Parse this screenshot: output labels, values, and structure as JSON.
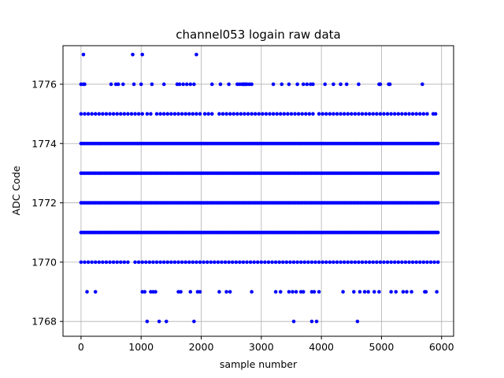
{
  "chart_data": {
    "type": "scatter",
    "title": "channel053 logain raw data",
    "xlabel": "sample number",
    "ylabel": "ADC Code",
    "xlim": [
      -300,
      6200
    ],
    "ylim": [
      1767.5,
      1777.3
    ],
    "xticks": [
      0,
      1000,
      2000,
      3000,
      4000,
      5000,
      6000
    ],
    "yticks": [
      1768,
      1770,
      1772,
      1774,
      1776
    ],
    "grid": true,
    "legend": "none",
    "marker_color": "#0000ff",
    "series": [
      {
        "bands": [
          {
            "y": 1771,
            "x_start": 0,
            "x_end": 5940
          },
          {
            "y": 1772,
            "x_start": 0,
            "x_end": 5940
          },
          {
            "y": 1773,
            "x_start": 0,
            "x_end": 5940
          },
          {
            "y": 1774,
            "x_start": 0,
            "x_end": 5940
          }
        ],
        "points": [
          {
            "y": 1775,
            "x": [
              0,
              60,
              120,
              180,
              240,
              300,
              360,
              420,
              480,
              540,
              600,
              660,
              720,
              780,
              840,
              900,
              960,
              1020,
              1100,
              1160,
              1260,
              1320,
              1380,
              1440,
              1500,
              1560,
              1620,
              1680,
              1740,
              1800,
              1860,
              1920,
              1980,
              2060,
              2120,
              2180,
              2300,
              2360,
              2420,
              2480,
              2540,
              2600,
              2660,
              2720,
              2780,
              2840,
              2900,
              2960,
              3020,
              3080,
              3140,
              3200,
              3260,
              3320,
              3380,
              3440,
              3500,
              3560,
              3620,
              3680,
              3740,
              3800,
              3860,
              3960,
              4020,
              4080,
              4140,
              4200,
              4260,
              4320,
              4380,
              4440,
              4500,
              4560,
              4620,
              4680,
              4740,
              4800,
              4860,
              4920,
              4980,
              5040,
              5100,
              5160,
              5220,
              5280,
              5340,
              5400,
              5460,
              5520,
              5580,
              5640,
              5700,
              5760,
              5860,
              5900
            ]
          },
          {
            "y": 1770,
            "x": [
              0,
              60,
              120,
              180,
              240,
              300,
              360,
              420,
              480,
              540,
              600,
              660,
              720,
              780,
              900,
              960,
              1020,
              1080,
              1140,
              1200,
              1260,
              1320,
              1380,
              1440,
              1500,
              1560,
              1620,
              1680,
              1740,
              1800,
              1860,
              1920,
              1980,
              2040,
              2100,
              2160,
              2220,
              2280,
              2340,
              2400,
              2460,
              2520,
              2580,
              2640,
              2700,
              2760,
              2820,
              2880,
              2940,
              3000,
              3060,
              3120,
              3180,
              3240,
              3300,
              3360,
              3420,
              3480,
              3540,
              3600,
              3660,
              3720,
              3780,
              3840,
              3900,
              3960,
              4020,
              4080,
              4140,
              4200,
              4260,
              4320,
              4380,
              4440,
              4500,
              4560,
              4620,
              4680,
              4740,
              4800,
              4860,
              4920,
              4980,
              5040,
              5100,
              5160,
              5220,
              5280,
              5340,
              5400,
              5460,
              5520,
              5580,
              5640,
              5700,
              5760,
              5820,
              5880,
              5940
            ]
          },
          {
            "y": 1776,
            "x": [
              0,
              40,
              60,
              500,
              580,
              620,
              700,
              880,
              1000,
              1180,
              1380,
              1600,
              1640,
              1700,
              1760,
              1820,
              1880,
              2180,
              2320,
              2460,
              2600,
              2640,
              2680,
              2700,
              2720,
              2740,
              2760,
              2800,
              2840,
              3200,
              3340,
              3460,
              3600,
              3700,
              3760,
              3820,
              3860,
              4060,
              4200,
              4320,
              4420,
              4620,
              4960,
              4980,
              5120,
              5140,
              5680
            ]
          },
          {
            "y": 1777,
            "x": [
              40,
              860,
              1020,
              1920
            ]
          },
          {
            "y": 1769,
            "x": [
              100,
              240,
              1020,
              1060,
              1160,
              1200,
              1240,
              1620,
              1660,
              1820,
              1940,
              1980,
              2300,
              2420,
              2480,
              2840,
              3240,
              3320,
              3460,
              3520,
              3580,
              3660,
              3700,
              3840,
              3880,
              3960,
              4360,
              4540,
              4640,
              4720,
              4780,
              4880,
              4960,
              5160,
              5240,
              5360,
              5420,
              5500,
              5720,
              5740,
              5920
            ]
          },
          {
            "y": 1768,
            "x": [
              1100,
              1300,
              1420,
              1880,
              3540,
              3840,
              3920,
              4600
            ]
          }
        ]
      }
    ]
  }
}
